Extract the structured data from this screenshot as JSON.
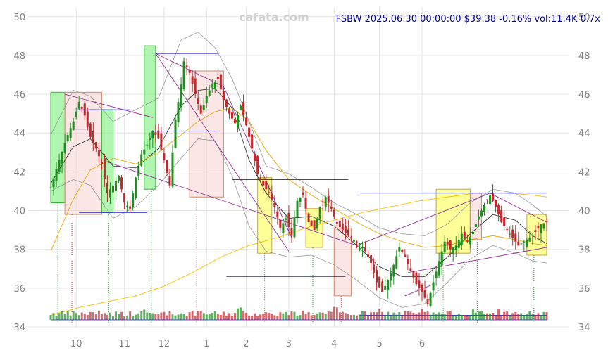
{
  "watermark": "cafata.com",
  "header": "FSBW 2025.06.30 00:00:00 $39.38 -0.16% vol:11.4K 0.7x",
  "colors": {
    "up": "#1e8f1e",
    "down": "#c0282d",
    "upper_band": "#8c8c8c",
    "ma20": "#222222",
    "ma50": "#e8a800",
    "ma200": "#f2c200",
    "trend": "#8b1a8b",
    "support": "#2020c0",
    "box_green": "#7cf07c",
    "box_red": "#f7c8c8",
    "box_yellow": "#ffff55",
    "grid": "#e3e3e3"
  },
  "chart_data": {
    "type": "candlestick",
    "ticker": "FSBW",
    "last_close": 39.38,
    "change_pct": -0.16,
    "volume": "11.4K",
    "volume_ratio": "0.7x",
    "x_tick_labels": [
      "10",
      "11",
      "12",
      "1",
      "2",
      "3",
      "4",
      "5",
      "6"
    ],
    "y_ticks": [
      34,
      36,
      38,
      40,
      42,
      44,
      46,
      48,
      50
    ],
    "ylim": [
      34,
      50.5
    ],
    "grid": true,
    "series": [
      {
        "name": "price",
        "points": [
          [
            0,
            41.2
          ],
          [
            3,
            42.6
          ],
          [
            6,
            43.9
          ],
          [
            8,
            44.6
          ],
          [
            10,
            45.6
          ],
          [
            12,
            44.9
          ],
          [
            14,
            43.8
          ],
          [
            16,
            43.2
          ],
          [
            18,
            42.4
          ],
          [
            20,
            40.9
          ],
          [
            22,
            41.3
          ],
          [
            24,
            41.8
          ],
          [
            26,
            40.4
          ],
          [
            28,
            40.1
          ],
          [
            30,
            41.7
          ],
          [
            32,
            42.9
          ],
          [
            34,
            43.4
          ],
          [
            36,
            44.1
          ],
          [
            38,
            43.7
          ],
          [
            40,
            42.6
          ],
          [
            42,
            41.3
          ],
          [
            44,
            44.7
          ],
          [
            46,
            46.5
          ],
          [
            47,
            47.7
          ],
          [
            49,
            47.1
          ],
          [
            51,
            46.0
          ],
          [
            53,
            45.0
          ],
          [
            55,
            45.9
          ],
          [
            57,
            46.5
          ],
          [
            59,
            46.8
          ],
          [
            61,
            45.7
          ],
          [
            63,
            45.0
          ],
          [
            65,
            44.5
          ],
          [
            67,
            45.4
          ],
          [
            69,
            44.4
          ],
          [
            71,
            43.2
          ],
          [
            73,
            41.9
          ],
          [
            75,
            41.3
          ],
          [
            77,
            40.9
          ],
          [
            79,
            40.2
          ],
          [
            81,
            39.1
          ],
          [
            83,
            39.6
          ],
          [
            85,
            38.7
          ],
          [
            87,
            40.5
          ],
          [
            89,
            40.8
          ],
          [
            91,
            39.4
          ],
          [
            93,
            39.0
          ],
          [
            95,
            40.2
          ],
          [
            97,
            40.7
          ],
          [
            99,
            40.1
          ],
          [
            101,
            39.3
          ],
          [
            103,
            39.0
          ],
          [
            105,
            38.7
          ],
          [
            107,
            38.5
          ],
          [
            109,
            38.3
          ],
          [
            111,
            37.9
          ],
          [
            113,
            37.3
          ],
          [
            115,
            36.3
          ],
          [
            117,
            35.8
          ],
          [
            119,
            36.4
          ],
          [
            121,
            37.2
          ],
          [
            123,
            38.1
          ],
          [
            125,
            37.6
          ],
          [
            127,
            36.9
          ],
          [
            129,
            36.2
          ],
          [
            131,
            35.8
          ],
          [
            133,
            35.2
          ],
          [
            135,
            36.3
          ],
          [
            137,
            37.4
          ],
          [
            139,
            38.4
          ],
          [
            141,
            38.0
          ],
          [
            143,
            38.2
          ],
          [
            145,
            38.8
          ],
          [
            147,
            38.4
          ],
          [
            149,
            38.9
          ],
          [
            151,
            39.7
          ],
          [
            153,
            40.3
          ],
          [
            155,
            40.8
          ],
          [
            157,
            40.2
          ],
          [
            159,
            39.4
          ],
          [
            161,
            39.0
          ],
          [
            163,
            38.6
          ],
          [
            165,
            38.2
          ],
          [
            167,
            38.4
          ],
          [
            169,
            38.6
          ],
          [
            171,
            38.9
          ],
          [
            173,
            39.3
          ],
          [
            175,
            39.4
          ]
        ]
      },
      {
        "name": "",
        "role": "upper band",
        "points": [
          [
            0,
            43.9
          ],
          [
            8,
            46.2
          ],
          [
            14,
            45.9
          ],
          [
            22,
            44.6
          ],
          [
            30,
            45.2
          ],
          [
            38,
            45.8
          ],
          [
            46,
            48.8
          ],
          [
            52,
            49.2
          ],
          [
            58,
            48.4
          ],
          [
            64,
            46.8
          ],
          [
            70,
            44.6
          ],
          [
            76,
            42.3
          ],
          [
            84,
            41.9
          ],
          [
            92,
            41.2
          ],
          [
            100,
            40.4
          ],
          [
            108,
            39.8
          ],
          [
            116,
            39.1
          ],
          [
            124,
            38.8
          ],
          [
            132,
            38.7
          ],
          [
            140,
            39.3
          ],
          [
            148,
            40.4
          ],
          [
            156,
            41.1
          ],
          [
            164,
            40.9
          ],
          [
            170,
            40.3
          ],
          [
            175,
            39.7
          ]
        ]
      },
      {
        "name": "",
        "role": "lower band",
        "points": [
          [
            0,
            41.0
          ],
          [
            8,
            41.6
          ],
          [
            14,
            41.3
          ],
          [
            22,
            39.6
          ],
          [
            30,
            40.2
          ],
          [
            38,
            41.3
          ],
          [
            46,
            42.7
          ],
          [
            52,
            43.7
          ],
          [
            58,
            43.6
          ],
          [
            64,
            41.8
          ],
          [
            70,
            39.2
          ],
          [
            76,
            37.9
          ],
          [
            84,
            37.6
          ],
          [
            92,
            37.7
          ],
          [
            100,
            37.2
          ],
          [
            108,
            36.4
          ],
          [
            116,
            35.5
          ],
          [
            124,
            35.0
          ],
          [
            132,
            35.2
          ],
          [
            140,
            36.3
          ],
          [
            148,
            37.5
          ],
          [
            156,
            38.2
          ],
          [
            164,
            37.8
          ],
          [
            170,
            37.4
          ],
          [
            175,
            37.3
          ]
        ]
      },
      {
        "name": "",
        "role": "MA20",
        "points": [
          [
            0,
            41.4
          ],
          [
            8,
            43.3
          ],
          [
            14,
            43.7
          ],
          [
            22,
            42.3
          ],
          [
            30,
            42.2
          ],
          [
            38,
            43.2
          ],
          [
            46,
            45.4
          ],
          [
            52,
            46.2
          ],
          [
            58,
            46.3
          ],
          [
            64,
            45.3
          ],
          [
            70,
            42.6
          ],
          [
            76,
            40.9
          ],
          [
            84,
            39.6
          ],
          [
            92,
            39.7
          ],
          [
            100,
            39.2
          ],
          [
            108,
            38.2
          ],
          [
            116,
            37.1
          ],
          [
            124,
            36.6
          ],
          [
            132,
            36.6
          ],
          [
            140,
            37.6
          ],
          [
            148,
            38.8
          ],
          [
            156,
            39.8
          ],
          [
            164,
            39.5
          ],
          [
            170,
            38.7
          ],
          [
            175,
            38.3
          ]
        ]
      },
      {
        "name": "",
        "role": "MA50",
        "points": [
          [
            0,
            37.9
          ],
          [
            8,
            40.6
          ],
          [
            14,
            42.1
          ],
          [
            22,
            42.7
          ],
          [
            30,
            42.4
          ],
          [
            38,
            43.0
          ],
          [
            46,
            43.9
          ],
          [
            52,
            44.6
          ],
          [
            58,
            45.1
          ],
          [
            64,
            45.3
          ],
          [
            70,
            44.6
          ],
          [
            76,
            43.1
          ],
          [
            84,
            41.6
          ],
          [
            92,
            40.8
          ],
          [
            100,
            40.1
          ],
          [
            108,
            39.4
          ],
          [
            116,
            38.8
          ],
          [
            124,
            38.4
          ],
          [
            132,
            38.1
          ],
          [
            140,
            38.2
          ],
          [
            148,
            38.5
          ],
          [
            156,
            38.7
          ],
          [
            164,
            38.5
          ],
          [
            170,
            38.3
          ],
          [
            175,
            38.2
          ]
        ]
      },
      {
        "name": "",
        "role": "MA200",
        "points": [
          [
            0,
            34.6
          ],
          [
            10,
            35.0
          ],
          [
            20,
            35.3
          ],
          [
            30,
            35.6
          ],
          [
            40,
            36.1
          ],
          [
            50,
            36.8
          ],
          [
            60,
            37.6
          ],
          [
            70,
            38.2
          ],
          [
            80,
            38.6
          ],
          [
            90,
            39.1
          ],
          [
            100,
            39.5
          ],
          [
            110,
            39.9
          ],
          [
            120,
            40.2
          ],
          [
            130,
            40.5
          ],
          [
            140,
            40.7
          ],
          [
            150,
            40.9
          ],
          [
            160,
            40.9
          ],
          [
            170,
            40.8
          ],
          [
            175,
            40.7
          ]
        ]
      }
    ],
    "trend_lines": [
      {
        "from": [
          5,
          46.0
        ],
        "to": [
          36,
          44.8
        ]
      },
      {
        "from": [
          20,
          42.5
        ],
        "to": [
          108,
          38.2
        ]
      },
      {
        "from": [
          37,
          48.1
        ],
        "to": [
          61,
          46.4
        ]
      },
      {
        "from": [
          37,
          48.1
        ],
        "to": [
          84,
          37.9
        ]
      },
      {
        "from": [
          61,
          46.4
        ],
        "to": [
          85,
          38.6
        ]
      },
      {
        "from": [
          108,
          38.2
        ],
        "to": [
          155,
          40.9
        ]
      },
      {
        "from": [
          126,
          36.8
        ],
        "to": [
          175,
          38.1
        ]
      },
      {
        "from": [
          155,
          40.9
        ],
        "to": [
          175,
          39.4
        ]
      },
      {
        "from": [
          125,
          35.6
        ],
        "to": [
          135,
          36.2
        ]
      }
    ],
    "support_lines": [
      {
        "from": [
          8,
          44.2
        ],
        "to": [
          13,
          44.2
        ]
      },
      {
        "from": [
          9,
          45.2
        ],
        "to": [
          17,
          45.2
        ]
      },
      {
        "from": [
          14,
          45.2
        ],
        "to": [
          28,
          45.2
        ]
      },
      {
        "from": [
          10,
          39.9
        ],
        "to": [
          34,
          39.9
        ]
      },
      {
        "from": [
          37,
          48.1
        ],
        "to": [
          59,
          48.1
        ]
      },
      {
        "from": [
          36,
          44.1
        ],
        "to": [
          59,
          44.1
        ]
      },
      {
        "from": [
          64,
          41.6
        ],
        "to": [
          105,
          41.6
        ]
      },
      {
        "from": [
          62,
          36.6
        ],
        "to": [
          104,
          36.6
        ]
      },
      {
        "from": [
          109,
          40.9
        ],
        "to": [
          175,
          40.9
        ]
      },
      {
        "from": [
          109,
          34.6
        ],
        "to": [
          175,
          34.6
        ]
      }
    ],
    "zones": [
      {
        "kind": "green",
        "from": [
          0,
          46.1
        ],
        "to": [
          5,
          40.4
        ]
      },
      {
        "kind": "red",
        "from": [
          5,
          46.1
        ],
        "to": [
          18,
          39.8
        ]
      },
      {
        "kind": "green",
        "from": [
          18,
          45.2
        ],
        "to": [
          22,
          39.9
        ]
      },
      {
        "kind": "green",
        "from": [
          33,
          48.5
        ],
        "to": [
          37,
          41.1
        ]
      },
      {
        "kind": "red",
        "from": [
          49,
          47.2
        ],
        "to": [
          61,
          40.7
        ]
      },
      {
        "kind": "yellow",
        "from": [
          73,
          41.7
        ],
        "to": [
          78,
          37.8
        ]
      },
      {
        "kind": "yellow",
        "from": [
          90,
          40.1
        ],
        "to": [
          96,
          38.1
        ]
      },
      {
        "kind": "red",
        "from": [
          100,
          39.1
        ],
        "to": [
          106,
          35.6
        ]
      },
      {
        "kind": "yellow",
        "from": [
          136,
          41.1
        ],
        "to": [
          148,
          37.8
        ]
      },
      {
        "kind": "red",
        "from": [
          148,
          40.9
        ],
        "to": [
          152,
          38.5
        ]
      },
      {
        "kind": "yellow",
        "from": [
          168,
          39.8
        ],
        "to": [
          175,
          37.7
        ]
      }
    ]
  }
}
